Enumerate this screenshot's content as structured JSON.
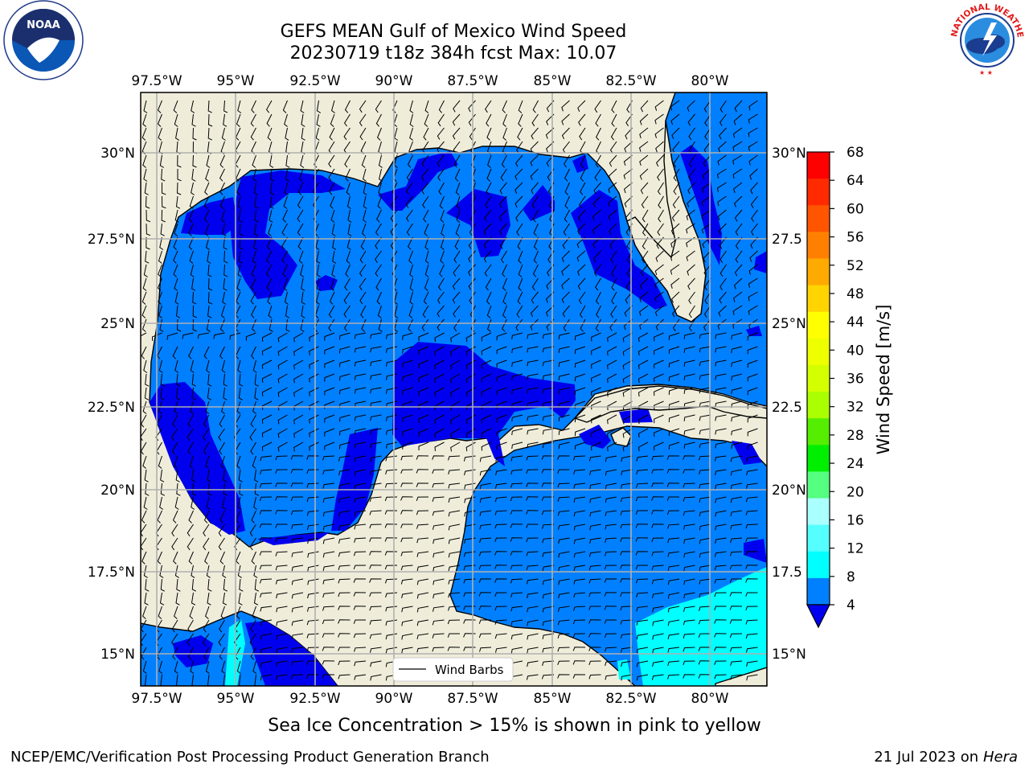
{
  "title": {
    "line1": "GEFS MEAN Gulf of Mexico Wind Speed",
    "line2": "20230719 t18z 384h fcst   Max: 10.07"
  },
  "logos": {
    "left": {
      "icon": "noaa-logo-icon",
      "text": "NOAA"
    },
    "right": {
      "icon": "nws-logo-icon",
      "text": "NATIONAL WEATHER SERVICE"
    }
  },
  "map": {
    "lon_labels": [
      "97.5°W",
      "95°W",
      "92.5°W",
      "90°W",
      "87.5°W",
      "85°W",
      "82.5°W",
      "80°W"
    ],
    "lat_labels": [
      "30°N",
      "27.5°N",
      "25°N",
      "22.5°N",
      "20°N",
      "17.5°N",
      "15°N"
    ],
    "lat_labels_right": [
      "30°N",
      "27.5",
      "25°N",
      "22.5",
      "20°N",
      "17.5",
      "15°N"
    ],
    "legend_label": "Wind Barbs",
    "colors": {
      "land": "#efedda",
      "ocean_low": "#0080ff",
      "ocean_calm": "#0000ee",
      "ocean_high": "#00ffff",
      "grid": "#b0b0b0"
    }
  },
  "colorbar": {
    "label": "Wind Speed [m/s]",
    "ticks": [
      "68",
      "64",
      "60",
      "56",
      "52",
      "48",
      "44",
      "40",
      "36",
      "32",
      "28",
      "24",
      "20",
      "16",
      "12",
      "8",
      "4"
    ],
    "colors": [
      "#ff0000",
      "#ff2a00",
      "#ff5500",
      "#ff8000",
      "#ffaa00",
      "#ffd400",
      "#ffff00",
      "#eeff00",
      "#d4ff00",
      "#aaff00",
      "#55ee00",
      "#00ee00",
      "#55ff80",
      "#aaffff",
      "#55ffff",
      "#00ffff",
      "#0080ff"
    ],
    "under_color": "#0000ee"
  },
  "caption": "Sea Ice Concentration > 15% is shown in pink to yellow",
  "footer": {
    "left": "NCEP/EMC/Verification Post Processing Product Generation Branch",
    "right_date": "21 Jul 2023 on ",
    "right_host": "Hera"
  }
}
